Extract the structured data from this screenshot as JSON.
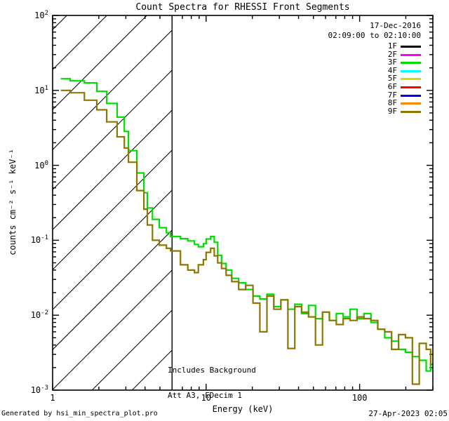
{
  "title": "Count Spectra for RHESSI Front Segments",
  "header": {
    "date": "17-Dec-2016",
    "time_range": "02:09:00 to 02:10:00"
  },
  "legend": [
    {
      "label": "1F",
      "color": "#000000"
    },
    {
      "label": "2F",
      "color": "#ff00ff"
    },
    {
      "label": "3F",
      "color": "#00dd00"
    },
    {
      "label": "4F",
      "color": "#00ffff"
    },
    {
      "label": "5F",
      "color": "#d9d900"
    },
    {
      "label": "6F",
      "color": "#ff0000"
    },
    {
      "label": "7F",
      "color": "#0000ff"
    },
    {
      "label": "8F",
      "color": "#ff8800"
    },
    {
      "label": "9F",
      "color": "#8e7700"
    }
  ],
  "annotation": {
    "line1": "Includes Background",
    "line2": "Att A3, FDecim 1"
  },
  "footer": {
    "left": "Generated by hsi_min_spectra_plot.pro",
    "right": "27-Apr-2023 02:05"
  },
  "chart_data": {
    "type": "line",
    "title": "Count Spectra for RHESSI Front Segments",
    "xlabel": "Energy (keV)",
    "ylabel": "counts cm⁻² s⁻¹ keV⁻¹",
    "x_axis": {
      "scale": "log",
      "min": 1,
      "max": 300,
      "major_ticks": [
        1,
        10,
        100
      ]
    },
    "y_axis": {
      "scale": "log",
      "min": 0.001,
      "max": 100,
      "tick_exponents": [
        2,
        1,
        0,
        -1,
        -2,
        -3
      ]
    },
    "grid": false,
    "legend_position": "upper right outside",
    "hatched_exclusion_region_kev": {
      "from": 1,
      "to": 6
    },
    "series": [
      {
        "name": "3F",
        "color": "#00dd00",
        "points": [
          [
            1.13,
            14.3
          ],
          [
            1.3,
            13.4
          ],
          [
            1.61,
            12.6
          ],
          [
            1.94,
            9.7
          ],
          [
            2.25,
            6.7
          ],
          [
            2.63,
            4.4
          ],
          [
            2.93,
            2.83
          ],
          [
            3.12,
            1.57
          ],
          [
            3.54,
            0.79
          ],
          [
            3.93,
            0.43
          ],
          [
            4.14,
            0.27
          ],
          [
            4.47,
            0.19
          ],
          [
            4.95,
            0.147
          ],
          [
            5.51,
            0.126
          ],
          [
            5.87,
            0.112
          ],
          [
            6.8,
            0.105
          ],
          [
            7.6,
            0.098
          ],
          [
            8.4,
            0.088
          ],
          [
            8.9,
            0.082
          ],
          [
            9.6,
            0.09
          ],
          [
            10.0,
            0.104
          ],
          [
            10.7,
            0.112
          ],
          [
            11.3,
            0.094
          ],
          [
            11.9,
            0.063
          ],
          [
            12.6,
            0.049
          ],
          [
            13.5,
            0.04
          ],
          [
            14.7,
            0.031
          ],
          [
            16.3,
            0.027
          ],
          [
            18.1,
            0.022
          ],
          [
            20.2,
            0.018
          ],
          [
            22.4,
            0.0165
          ],
          [
            24.9,
            0.019
          ],
          [
            27.6,
            0.013
          ],
          [
            30.7,
            0.016
          ],
          [
            34.1,
            0.012
          ],
          [
            37.8,
            0.014
          ],
          [
            41.9,
            0.0105
          ],
          [
            46.5,
            0.0135
          ],
          [
            51.6,
            0.009
          ],
          [
            57.3,
            0.011
          ],
          [
            63.5,
            0.0085
          ],
          [
            70.5,
            0.0105
          ],
          [
            78.2,
            0.0095
          ],
          [
            86.7,
            0.012
          ],
          [
            96.2,
            0.009
          ],
          [
            106.7,
            0.0105
          ],
          [
            118.4,
            0.008
          ],
          [
            131.3,
            0.0065
          ],
          [
            145.7,
            0.005
          ],
          [
            161.6,
            0.0045
          ],
          [
            179.3,
            0.0035
          ],
          [
            198.9,
            0.0032
          ],
          [
            220.6,
            0.0028
          ],
          [
            244.7,
            0.0025
          ],
          [
            271.5,
            0.0018
          ],
          [
            290,
            0.0022
          ]
        ]
      },
      {
        "name": "9F",
        "color": "#8e7700",
        "points": [
          [
            1.13,
            10.0
          ],
          [
            1.3,
            9.3
          ],
          [
            1.61,
            7.4
          ],
          [
            1.94,
            5.5
          ],
          [
            2.25,
            3.8
          ],
          [
            2.63,
            2.4
          ],
          [
            2.93,
            1.7
          ],
          [
            3.12,
            1.1
          ],
          [
            3.54,
            0.46
          ],
          [
            3.93,
            0.26
          ],
          [
            4.14,
            0.16
          ],
          [
            4.47,
            0.1
          ],
          [
            4.95,
            0.086
          ],
          [
            5.51,
            0.078
          ],
          [
            5.87,
            0.072
          ],
          [
            6.8,
            0.047
          ],
          [
            7.6,
            0.04
          ],
          [
            8.4,
            0.037
          ],
          [
            8.9,
            0.047
          ],
          [
            9.6,
            0.055
          ],
          [
            10.0,
            0.069
          ],
          [
            10.7,
            0.078
          ],
          [
            11.3,
            0.062
          ],
          [
            11.9,
            0.05
          ],
          [
            12.6,
            0.042
          ],
          [
            13.5,
            0.034
          ],
          [
            14.7,
            0.028
          ],
          [
            16.3,
            0.022
          ],
          [
            18.1,
            0.025
          ],
          [
            20.2,
            0.0145
          ],
          [
            22.4,
            0.006
          ],
          [
            24.9,
            0.018
          ],
          [
            27.6,
            0.012
          ],
          [
            30.7,
            0.016
          ],
          [
            34.1,
            0.0036
          ],
          [
            37.8,
            0.013
          ],
          [
            41.9,
            0.011
          ],
          [
            46.5,
            0.0095
          ],
          [
            51.6,
            0.004
          ],
          [
            57.3,
            0.011
          ],
          [
            63.5,
            0.0085
          ],
          [
            70.5,
            0.0075
          ],
          [
            78.2,
            0.009
          ],
          [
            86.7,
            0.0085
          ],
          [
            96.2,
            0.0095
          ],
          [
            106.7,
            0.009
          ],
          [
            118.4,
            0.0085
          ],
          [
            131.3,
            0.0065
          ],
          [
            145.7,
            0.006
          ],
          [
            161.6,
            0.0035
          ],
          [
            179.3,
            0.0055
          ],
          [
            198.9,
            0.005
          ],
          [
            220.6,
            0.0012
          ],
          [
            244.7,
            0.0042
          ],
          [
            271.5,
            0.0035
          ],
          [
            290,
            0.0022
          ]
        ]
      }
    ]
  }
}
